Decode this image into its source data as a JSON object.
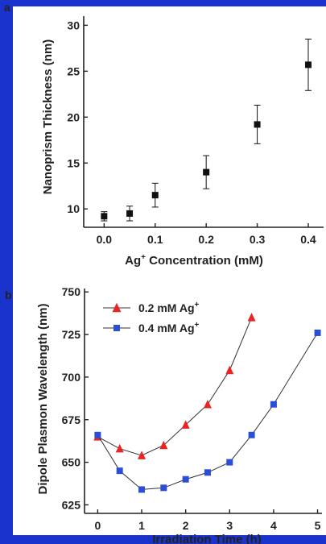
{
  "border_color": "#1a33cc",
  "panels": [
    {
      "letter": "a",
      "xlabel": "Ag",
      "xlabel_sup": "+",
      "xlabel_rest": " Concentration (mM)",
      "ylabel": "Nanoprism Thickness (nm)"
    },
    {
      "letter": "b",
      "xlabel": "Irradiation Time (h)",
      "ylabel": "Dipole Plasmon Wavelength (nm)"
    }
  ],
  "chart_data": [
    {
      "type": "scatter",
      "xlim": [
        -0.04,
        0.43
      ],
      "ylim": [
        8,
        31
      ],
      "xticks": [
        "0.0",
        "0.1",
        "0.2",
        "0.3",
        "0.4"
      ],
      "xtick_values": [
        0,
        0.1,
        0.2,
        0.3,
        0.4
      ],
      "yticks": [
        "10",
        "15",
        "20",
        "25",
        "30"
      ],
      "ytick_values": [
        10,
        15,
        20,
        25,
        30
      ],
      "x": [
        0,
        0.05,
        0.1,
        0.2,
        0.3,
        0.4
      ],
      "y": [
        9.2,
        9.5,
        11.5,
        14.0,
        19.2,
        25.7
      ],
      "yerr": [
        0.5,
        0.8,
        1.3,
        1.8,
        2.1,
        2.8
      ],
      "marker": "square",
      "color": "#111111",
      "grid": false
    },
    {
      "type": "line",
      "xlim": [
        -0.3,
        5.1
      ],
      "ylim": [
        620,
        752
      ],
      "xticks": [
        "0",
        "1",
        "2",
        "3",
        "4",
        "5"
      ],
      "xtick_values": [
        0,
        1,
        2,
        3,
        4,
        5
      ],
      "yticks": [
        "625",
        "650",
        "675",
        "700",
        "725",
        "750"
      ],
      "ytick_values": [
        625,
        650,
        675,
        700,
        725,
        750
      ],
      "legend_position": "top-left",
      "grid": false,
      "series": [
        {
          "name": "0.2 mM Ag",
          "name_sup": "+",
          "color": "#e82424",
          "marker": "triangle",
          "x": [
            0,
            0.5,
            1,
            1.5,
            2,
            2.5,
            3,
            3.5
          ],
          "values": [
            665,
            658,
            654,
            660,
            672,
            684,
            704,
            735
          ]
        },
        {
          "name": "0.4 mM Ag",
          "name_sup": "+",
          "color": "#2a4fd6",
          "marker": "square",
          "x": [
            0,
            0.5,
            1,
            1.5,
            2,
            2.5,
            3,
            3.5,
            4,
            5
          ],
          "values": [
            666,
            645,
            634,
            635,
            640,
            644,
            650,
            666,
            684,
            726
          ]
        }
      ]
    }
  ]
}
